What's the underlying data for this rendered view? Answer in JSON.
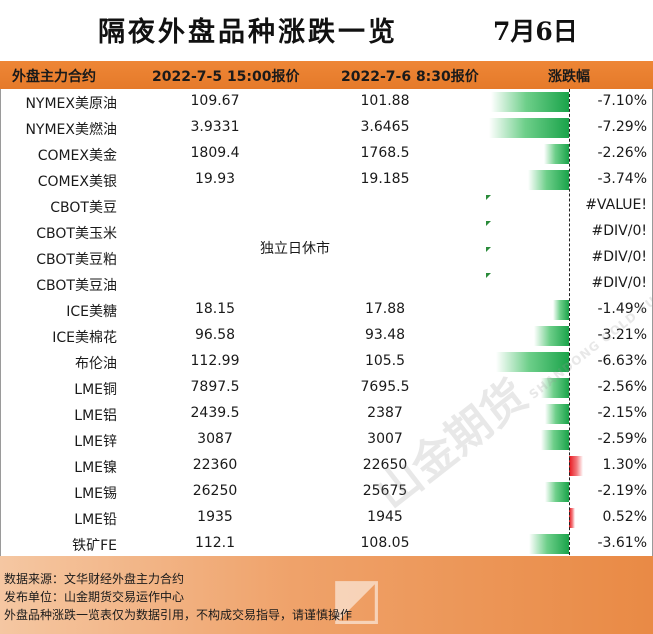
{
  "title": "隔夜外盘品种涨跌一览",
  "date": "7月6日",
  "header": {
    "contract": "外盘主力合约",
    "price_prev": "2022-7-5 15:00报价",
    "price_curr": "2022-7-6 8:30报价",
    "change": "涨跌幅"
  },
  "closed_note": "独立日休市",
  "rows": [
    {
      "name": "NYMEX美原油",
      "prev": "109.67",
      "curr": "101.88",
      "pct": "-7.10%",
      "value": -7.1
    },
    {
      "name": "NYMEX美燃油",
      "prev": "3.9331",
      "curr": "3.6465",
      "pct": "-7.29%",
      "value": -7.29
    },
    {
      "name": "COMEX美金",
      "prev": "1809.4",
      "curr": "1768.5",
      "pct": "-2.26%",
      "value": -2.26
    },
    {
      "name": "COMEX美银",
      "prev": "19.93",
      "curr": "19.185",
      "pct": "-3.74%",
      "value": -3.74
    },
    {
      "name": "CBOT美豆",
      "prev": "",
      "curr": "",
      "pct": "#VALUE!",
      "value": null
    },
    {
      "name": "CBOT美玉米",
      "prev": "",
      "curr": "",
      "pct": "#DIV/0!",
      "value": null
    },
    {
      "name": "CBOT美豆粕",
      "prev": "",
      "curr": "",
      "pct": "#DIV/0!",
      "value": null
    },
    {
      "name": "CBOT美豆油",
      "prev": "",
      "curr": "",
      "pct": "#DIV/0!",
      "value": null
    },
    {
      "name": "ICE美糖",
      "prev": "18.15",
      "curr": "17.88",
      "pct": "-1.49%",
      "value": -1.49
    },
    {
      "name": "ICE美棉花",
      "prev": "96.58",
      "curr": "93.48",
      "pct": "-3.21%",
      "value": -3.21
    },
    {
      "name": "布伦油",
      "prev": "112.99",
      "curr": "105.5",
      "pct": "-6.63%",
      "value": -6.63
    },
    {
      "name": "LME铜",
      "prev": "7897.5",
      "curr": "7695.5",
      "pct": "-2.56%",
      "value": -2.56
    },
    {
      "name": "LME铝",
      "prev": "2439.5",
      "curr": "2387",
      "pct": "-2.15%",
      "value": -2.15
    },
    {
      "name": "LME锌",
      "prev": "3087",
      "curr": "3007",
      "pct": "-2.59%",
      "value": -2.59
    },
    {
      "name": "LME镍",
      "prev": "22360",
      "curr": "22650",
      "pct": "1.30%",
      "value": 1.3
    },
    {
      "name": "LME锡",
      "prev": "26250",
      "curr": "25675",
      "pct": "-2.19%",
      "value": -2.19
    },
    {
      "name": "LME铅",
      "prev": "1935",
      "curr": "1945",
      "pct": "0.52%",
      "value": 0.52
    },
    {
      "name": "铁矿FE",
      "prev": "112.1",
      "curr": "108.05",
      "pct": "-3.61%",
      "value": -3.61
    }
  ],
  "footer": {
    "source": "数据来源：文华财经外盘主力合约",
    "publisher": "发布单位：山金期货交易运作中心",
    "disclaimer": "外盘品种涨跌一览表仅为数据引用，不构成交易指导，请谨慎操作"
  },
  "watermark": {
    "brand": "山金期货",
    "english": "SHANDONG GOLD FUTURES"
  },
  "colors": {
    "header_bg": "#e97f2f",
    "negative": "#1aa34a",
    "positive": "#e8141c",
    "footer_bg": "#efa26a"
  }
}
